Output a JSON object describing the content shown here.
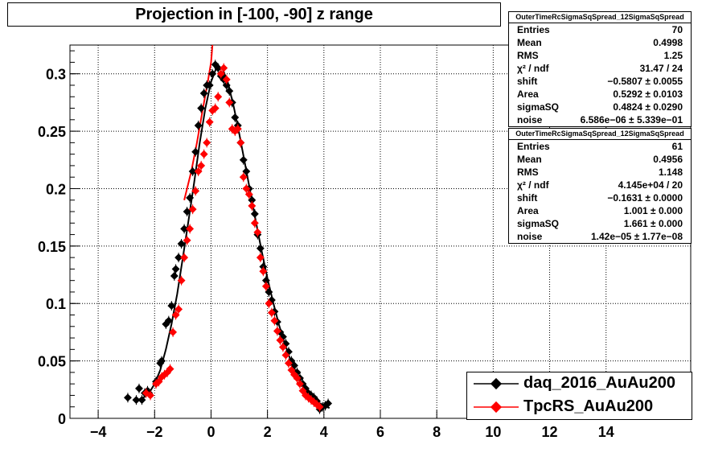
{
  "title": "Projection in [-100, -90] z range",
  "colors": {
    "daq": "#000000",
    "tpc": "#ff0000"
  },
  "stats": [
    {
      "name": "OuterTimeRcSigmaSqSpread_12SigmaSqSpread",
      "rows": [
        {
          "label": "Entries",
          "value": "70"
        },
        {
          "label": "Mean",
          "value": "0.4998"
        },
        {
          "label": "RMS",
          "value": "1.25"
        },
        {
          "label": "χ² / ndf",
          "value": "31.47 / 24"
        },
        {
          "label": "shift",
          "value": "−0.5807 ± 0.0055"
        },
        {
          "label": "Area",
          "value": "0.5292 ± 0.0103"
        },
        {
          "label": "sigmaSQ",
          "value": "0.4824 ± 0.0290"
        },
        {
          "label": "noise",
          "value": "6.586e−06 ± 5.339e−01"
        }
      ]
    },
    {
      "name": "OuterTimeRcSigmaSqSpread_12SigmaSqSpread",
      "rows": [
        {
          "label": "Entries",
          "value": "61"
        },
        {
          "label": "Mean",
          "value": "0.4956"
        },
        {
          "label": "RMS",
          "value": "1.148"
        },
        {
          "label": "χ² / ndf",
          "value": "4.145e+04 / 20"
        },
        {
          "label": "shift",
          "value": "−0.1631 ± 0.0000"
        },
        {
          "label": "Area",
          "value": "1.001 ± 0.000"
        },
        {
          "label": "sigmaSQ",
          "value": "1.661 ± 0.000"
        },
        {
          "label": "noise",
          "value": "1.42e−05 ± 1.77e−08"
        }
      ]
    }
  ],
  "chart_data": {
    "type": "scatter",
    "xlim": [
      -5,
      17
    ],
    "ylim": [
      0,
      0.325
    ],
    "grid": true,
    "legend_position": "bottom-right",
    "x_ticks": [
      -4,
      -2,
      0,
      2,
      4,
      6,
      8,
      10,
      12,
      14
    ],
    "x_tick_labels": [
      "−4",
      "−2",
      "0",
      "2",
      "4",
      "6",
      "8",
      "10",
      "12",
      "14"
    ],
    "y_ticks": [
      0,
      0.05,
      0.1,
      0.15,
      0.2,
      0.25,
      0.3
    ],
    "y_tick_labels": [
      "0",
      "0.05",
      "0.1",
      "0.15",
      "0.2",
      "0.25",
      "0.3"
    ],
    "series": [
      {
        "name": "daq_2016_AuAu200",
        "color": "#000000",
        "x": [
          -2.95,
          -2.65,
          -2.55,
          -2.45,
          -2.35,
          -2.25,
          -2.2,
          -1.95,
          -1.8,
          -1.75,
          -1.6,
          -1.5,
          -1.4,
          -1.3,
          -1.25,
          -1.15,
          -1.05,
          -0.95,
          -0.85,
          -0.75,
          -0.65,
          -0.55,
          -0.45,
          -0.35,
          -0.25,
          -0.15,
          -0.05,
          0.05,
          0.15,
          0.25,
          0.35,
          0.45,
          0.55,
          0.65,
          0.75,
          0.85,
          0.95,
          1.05,
          1.15,
          1.25,
          1.35,
          1.45,
          1.55,
          1.65,
          1.75,
          1.85,
          1.95,
          2.05,
          2.15,
          2.25,
          2.35,
          2.45,
          2.55,
          2.65,
          2.75,
          2.85,
          2.95,
          3.05,
          3.15,
          3.25,
          3.35,
          3.45,
          3.55,
          3.65,
          3.75,
          3.85,
          3.95,
          4.05,
          4.15
        ],
        "y": [
          0.018,
          0.016,
          0.026,
          0.016,
          0.022,
          0.024,
          0.022,
          0.032,
          0.048,
          0.05,
          0.082,
          0.085,
          0.098,
          0.124,
          0.13,
          0.14,
          0.152,
          0.165,
          0.18,
          0.192,
          0.215,
          0.232,
          0.255,
          0.27,
          0.283,
          0.29,
          0.29,
          0.3,
          0.308,
          0.305,
          0.298,
          0.295,
          0.29,
          0.285,
          0.275,
          0.262,
          0.255,
          0.24,
          0.225,
          0.215,
          0.2,
          0.19,
          0.178,
          0.16,
          0.148,
          0.132,
          0.12,
          0.11,
          0.103,
          0.093,
          0.084,
          0.075,
          0.071,
          0.065,
          0.058,
          0.05,
          0.046,
          0.04,
          0.035,
          0.03,
          0.026,
          0.022,
          0.02,
          0.018,
          0.015,
          0.008,
          0.01,
          0.011,
          0.013
        ]
      },
      {
        "name": "TpcRS_AuAu200",
        "color": "#ff0000",
        "x": [
          -2.3,
          -2.15,
          -1.95,
          -1.85,
          -1.75,
          -1.65,
          -1.55,
          -1.45,
          -1.35,
          -1.25,
          -1.15,
          -1.05,
          -0.95,
          -0.85,
          -0.75,
          -0.65,
          -0.55,
          -0.45,
          -0.35,
          -0.25,
          -0.15,
          -0.05,
          0.05,
          0.15,
          0.25,
          0.35,
          0.45,
          0.55,
          0.65,
          0.75,
          0.85,
          0.95,
          1.05,
          1.15,
          1.25,
          1.35,
          1.45,
          1.55,
          1.65,
          1.75,
          1.85,
          1.95,
          2.05,
          2.15,
          2.25,
          2.35,
          2.45,
          2.55,
          2.65,
          2.75,
          2.85,
          2.95,
          3.05,
          3.15,
          3.25,
          3.35,
          3.45,
          3.55,
          3.65,
          3.75,
          3.85
        ],
        "y": [
          0.022,
          0.02,
          0.03,
          0.032,
          0.036,
          0.038,
          0.04,
          0.043,
          0.075,
          0.09,
          0.095,
          0.12,
          0.14,
          0.155,
          0.165,
          0.182,
          0.198,
          0.215,
          0.22,
          0.23,
          0.24,
          0.258,
          0.268,
          0.27,
          0.28,
          0.3,
          0.305,
          0.295,
          0.275,
          0.252,
          0.25,
          0.252,
          0.24,
          0.21,
          0.2,
          0.195,
          0.185,
          0.17,
          0.162,
          0.14,
          0.128,
          0.115,
          0.1,
          0.092,
          0.085,
          0.076,
          0.068,
          0.062,
          0.055,
          0.048,
          0.042,
          0.038,
          0.035,
          0.03,
          0.024,
          0.02,
          0.018,
          0.016,
          0.014,
          0.012,
          0.01
        ]
      }
    ],
    "fit_curve": {
      "color": "#000000",
      "x": [
        -2.6,
        -2.4,
        -2.2,
        -2.0,
        -1.8,
        -1.6,
        -1.4,
        -1.2,
        -1.0,
        -0.8,
        -0.6,
        -0.4,
        -0.2,
        0.0,
        0.2,
        0.4,
        0.6,
        0.8,
        1.0,
        1.2,
        1.4,
        1.6,
        1.8,
        2.0,
        2.2,
        2.4,
        2.6,
        2.8,
        3.0,
        3.2,
        3.4,
        3.6,
        3.8,
        4.0,
        4.2
      ],
      "y": [
        0.016,
        0.018,
        0.022,
        0.03,
        0.042,
        0.06,
        0.082,
        0.108,
        0.14,
        0.172,
        0.205,
        0.24,
        0.27,
        0.293,
        0.306,
        0.305,
        0.292,
        0.272,
        0.248,
        0.222,
        0.196,
        0.17,
        0.145,
        0.122,
        0.101,
        0.082,
        0.066,
        0.052,
        0.041,
        0.031,
        0.024,
        0.018,
        0.014,
        0.011,
        0.009
      ]
    },
    "red_fit_curve": {
      "color": "#ff0000",
      "x": [
        -0.95,
        -0.7,
        -0.5,
        -0.3,
        -0.1,
        0.0,
        0.05
      ],
      "y": [
        0.19,
        0.215,
        0.24,
        0.268,
        0.295,
        0.31,
        0.325
      ]
    }
  }
}
